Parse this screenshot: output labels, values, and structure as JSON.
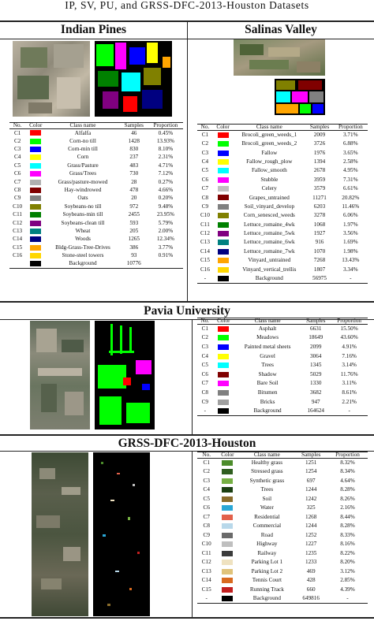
{
  "caption": "IP, SV, PU, and GRSS-DFC-2013-Houston Datasets",
  "headers": {
    "no": "No.",
    "color": "Color",
    "class": "Class name",
    "samples": "Samples",
    "proportion": "Proportion"
  },
  "datasets": {
    "ip": {
      "title": "Indian Pines",
      "headers": {
        "no": "No.",
        "color": "Color",
        "class": "Class name",
        "samples": "Samples",
        "proportion": "Proportion"
      },
      "rows": [
        {
          "no": "C1",
          "color": "#ff0000",
          "name": "Alfalfa",
          "samples": "46",
          "proportion": "0.45%"
        },
        {
          "no": "C2",
          "color": "#00ff00",
          "name": "Corn-no till",
          "samples": "1428",
          "proportion": "13.93%"
        },
        {
          "no": "C3",
          "color": "#0000ff",
          "name": "Corn-min till",
          "samples": "830",
          "proportion": "8.10%"
        },
        {
          "no": "C4",
          "color": "#ffff00",
          "name": "Corn",
          "samples": "237",
          "proportion": "2.31%"
        },
        {
          "no": "C5",
          "color": "#00ffff",
          "name": "Grass/Pasture",
          "samples": "483",
          "proportion": "4.71%"
        },
        {
          "no": "C6",
          "color": "#ff00ff",
          "name": "Grass/Trees",
          "samples": "730",
          "proportion": "7.12%"
        },
        {
          "no": "C7",
          "color": "#b0b0b0",
          "name": "Grass/pasture-mowed",
          "samples": "28",
          "proportion": "0.27%"
        },
        {
          "no": "C8",
          "color": "#800000",
          "name": "Hay-windrowed",
          "samples": "478",
          "proportion": "4.66%"
        },
        {
          "no": "C9",
          "color": "#808080",
          "name": "Oats",
          "samples": "20",
          "proportion": "0.20%"
        },
        {
          "no": "C10",
          "color": "#808000",
          "name": "Soybeans-no till",
          "samples": "972",
          "proportion": "9.48%"
        },
        {
          "no": "C11",
          "color": "#008000",
          "name": "Soybeans-min till",
          "samples": "2455",
          "proportion": "23.95%"
        },
        {
          "no": "C12",
          "color": "#800080",
          "name": "Soybeans-clean till",
          "samples": "593",
          "proportion": "5.79%"
        },
        {
          "no": "C13",
          "color": "#008080",
          "name": "Wheat",
          "samples": "205",
          "proportion": "2.00%"
        },
        {
          "no": "C14",
          "color": "#000080",
          "name": "Woods",
          "samples": "1265",
          "proportion": "12.34%"
        },
        {
          "no": "C15",
          "color": "#ffa500",
          "name": "Bldg-Grass-Tree-Drives",
          "samples": "386",
          "proportion": "3.77%"
        },
        {
          "no": "C16",
          "color": "#ffd700",
          "name": "Stone-steel towers",
          "samples": "93",
          "proportion": "0.91%"
        },
        {
          "no": "",
          "color": "#000000",
          "name": "Background",
          "samples": "10776",
          "proportion": ""
        }
      ]
    },
    "sv": {
      "title": "Salinas Valley",
      "headers": {
        "no": "No.",
        "color": "Color",
        "class": "Class name",
        "samples": "Samples",
        "proportion": "Proportion"
      },
      "rows": [
        {
          "no": "C1",
          "color": "#ff0000",
          "name": "Brocoli_green_weeds_1",
          "samples": "2009",
          "proportion": "3.71%"
        },
        {
          "no": "C2",
          "color": "#00ff00",
          "name": "Brocoli_green_weeds_2",
          "samples": "3726",
          "proportion": "6.88%"
        },
        {
          "no": "C3",
          "color": "#0000ff",
          "name": "Fallow",
          "samples": "1976",
          "proportion": "3.65%"
        },
        {
          "no": "C4",
          "color": "#ffff00",
          "name": "Fallow_rough_plow",
          "samples": "1394",
          "proportion": "2.58%"
        },
        {
          "no": "C5",
          "color": "#00ffff",
          "name": "Fallow_smooth",
          "samples": "2678",
          "proportion": "4.95%"
        },
        {
          "no": "C6",
          "color": "#ff00ff",
          "name": "Stubble",
          "samples": "3959",
          "proportion": "7.31%"
        },
        {
          "no": "C7",
          "color": "#c0c0c0",
          "name": "Celery",
          "samples": "3579",
          "proportion": "6.61%"
        },
        {
          "no": "C8",
          "color": "#800000",
          "name": "Grapes_untrained",
          "samples": "11271",
          "proportion": "20.82%"
        },
        {
          "no": "C9",
          "color": "#808080",
          "name": "Soil_vinyard_develop",
          "samples": "6203",
          "proportion": "11.46%"
        },
        {
          "no": "C10",
          "color": "#808000",
          "name": "Corn_senesced_weeds",
          "samples": "3278",
          "proportion": "6.06%"
        },
        {
          "no": "C11",
          "color": "#008000",
          "name": "Lettuce_romaine_4wk",
          "samples": "1068",
          "proportion": "1.97%"
        },
        {
          "no": "C12",
          "color": "#800080",
          "name": "Lettuce_romaine_5wk",
          "samples": "1927",
          "proportion": "3.56%"
        },
        {
          "no": "C13",
          "color": "#008080",
          "name": "Lettuce_romaine_6wk",
          "samples": "916",
          "proportion": "1.69%"
        },
        {
          "no": "C14",
          "color": "#000080",
          "name": "Lettuce_romaine_7wk",
          "samples": "1070",
          "proportion": "1.98%"
        },
        {
          "no": "C15",
          "color": "#ffa500",
          "name": "Vinyard_untrained",
          "samples": "7268",
          "proportion": "13.43%"
        },
        {
          "no": "C16",
          "color": "#ffd700",
          "name": "Vinyard_vertical_trellis",
          "samples": "1807",
          "proportion": "3.34%"
        },
        {
          "no": "-",
          "color": "#000000",
          "name": "Background",
          "samples": "56975",
          "proportion": "-"
        }
      ]
    },
    "pu": {
      "title": "Pavia University",
      "headers": {
        "no": "No.",
        "color": "Color",
        "class": "Class name",
        "samples": "Samples",
        "proportion": "Proportion"
      },
      "rows": [
        {
          "no": "C1",
          "color": "#ff0000",
          "name": "Asphalt",
          "samples": "6631",
          "proportion": "15.50%"
        },
        {
          "no": "C2",
          "color": "#00ff00",
          "name": "Meadows",
          "samples": "18649",
          "proportion": "43.60%"
        },
        {
          "no": "C3",
          "color": "#0000ff",
          "name": "Painted metal sheets",
          "samples": "2099",
          "proportion": "4.91%"
        },
        {
          "no": "C4",
          "color": "#ffff00",
          "name": "Gravel",
          "samples": "3064",
          "proportion": "7.16%"
        },
        {
          "no": "C5",
          "color": "#00ffff",
          "name": "Trees",
          "samples": "1345",
          "proportion": "3.14%"
        },
        {
          "no": "C6",
          "color": "#800000",
          "name": "Shadow",
          "samples": "5029",
          "proportion": "11.76%"
        },
        {
          "no": "C7",
          "color": "#ff00ff",
          "name": "Bare Soil",
          "samples": "1330",
          "proportion": "3.11%"
        },
        {
          "no": "C8",
          "color": "#808080",
          "name": "Bitumen",
          "samples": "3682",
          "proportion": "8.61%"
        },
        {
          "no": "C9",
          "color": "#a0a0a0",
          "name": "Bricks",
          "samples": "947",
          "proportion": "2.21%"
        },
        {
          "no": "-",
          "color": "#000000",
          "name": "Background",
          "samples": "164624",
          "proportion": "-"
        }
      ]
    },
    "hou": {
      "title": "GRSS-DFC-2013-Houston",
      "headers": {
        "no": "No.",
        "color": "Color",
        "class": "Class name",
        "samples": "Samples",
        "proportion": "Proportion"
      },
      "rows": [
        {
          "no": "C1",
          "color": "#4c8c2b",
          "name": "Healthy grass",
          "samples": "1251",
          "proportion": "8.32%"
        },
        {
          "no": "C2",
          "color": "#2f5e1f",
          "name": "Stressed grass",
          "samples": "1254",
          "proportion": "8.34%"
        },
        {
          "no": "C3",
          "color": "#76b043",
          "name": "Synthetic grass",
          "samples": "697",
          "proportion": "4.64%"
        },
        {
          "no": "C4",
          "color": "#1b3f12",
          "name": "Trees",
          "samples": "1244",
          "proportion": "8.28%"
        },
        {
          "no": "C5",
          "color": "#8a6d2c",
          "name": "Soil",
          "samples": "1242",
          "proportion": "8.26%"
        },
        {
          "no": "C6",
          "color": "#2aa7d6",
          "name": "Water",
          "samples": "325",
          "proportion": "2.16%"
        },
        {
          "no": "C7",
          "color": "#e2614b",
          "name": "Residential",
          "samples": "1268",
          "proportion": "8.44%"
        },
        {
          "no": "C8",
          "color": "#b8d8ea",
          "name": "Commercial",
          "samples": "1244",
          "proportion": "8.28%"
        },
        {
          "no": "C9",
          "color": "#6a6a6a",
          "name": "Road",
          "samples": "1252",
          "proportion": "8.33%"
        },
        {
          "no": "C10",
          "color": "#bfbfbf",
          "name": "Highway",
          "samples": "1227",
          "proportion": "8.16%"
        },
        {
          "no": "C11",
          "color": "#3b3b3b",
          "name": "Railway",
          "samples": "1235",
          "proportion": "8.22%"
        },
        {
          "no": "C12",
          "color": "#efe2c0",
          "name": "Parking Lot 1",
          "samples": "1233",
          "proportion": "8.20%"
        },
        {
          "no": "C13",
          "color": "#e0c37a",
          "name": "Parking Lot 2",
          "samples": "469",
          "proportion": "3.12%"
        },
        {
          "no": "C14",
          "color": "#d96a1f",
          "name": "Tennis Court",
          "samples": "428",
          "proportion": "2.85%"
        },
        {
          "no": "C15",
          "color": "#c21f1f",
          "name": "Running Track",
          "samples": "660",
          "proportion": "4.39%"
        },
        {
          "no": "-",
          "color": "#000000",
          "name": "Background",
          "samples": "649816",
          "proportion": "-"
        }
      ]
    }
  }
}
